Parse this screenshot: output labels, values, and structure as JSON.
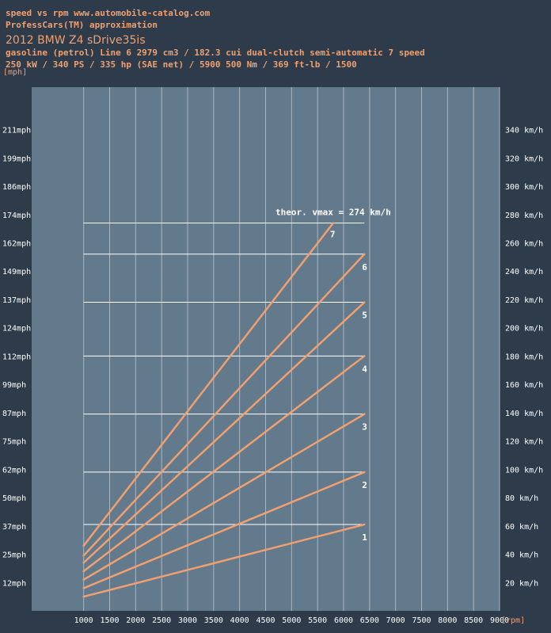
{
  "header": {
    "line1": "speed vs rpm www.automobile-catalog.com",
    "line2": "ProfessCars(TM) approximation",
    "model": "2012 BMW Z4 sDrive35is",
    "spec1": "gasoline (petrol) Line 6 2979 cm3 / 182.3 cui dual-clutch semi-automatic 7 speed",
    "spec2": "250 kW / 340 PS / 335 hp  (SAE net) / 5900 500 Nm / 369 ft-lb / 1500"
  },
  "chart_data": {
    "type": "line",
    "xlabel": "[rpm]",
    "ylabel": "[mph]",
    "x_ticks": [
      "1000",
      "1500",
      "2000",
      "2500",
      "3000",
      "3500",
      "4000",
      "4500",
      "5000",
      "5500",
      "6000",
      "6500",
      "7000",
      "7500",
      "8000",
      "8500",
      "9000"
    ],
    "y_left_ticks": [
      "12mph",
      "25mph",
      "37mph",
      "50mph",
      "62mph",
      "75mph",
      "87mph",
      "99mph",
      "112mph",
      "124mph",
      "137mph",
      "149mph",
      "162mph",
      "174mph",
      "186mph",
      "199mph",
      "211mph"
    ],
    "y_right_ticks": [
      "20 km/h",
      "40 km/h",
      "60 km/h",
      "80 km/h",
      "100 km/h",
      "120 km/h",
      "140 km/h",
      "160 km/h",
      "180 km/h",
      "200 km/h",
      "220 km/h",
      "240 km/h",
      "260 km/h",
      "280 km/h",
      "300 km/h",
      "320 km/h",
      "340 km/h"
    ],
    "xlim": [
      0,
      9000
    ],
    "ylim_kmh": [
      0,
      370
    ],
    "annotation": "theor. vmax = 274 km/h",
    "colors": {
      "plot_bg": "#637a8c",
      "line": "#f0a070",
      "grid": "#a9b7c3",
      "max_line": "#ffffff"
    },
    "series": [
      {
        "name": "1",
        "x": [
          1000,
          6400
        ],
        "y_kmh": [
          10,
          61
        ]
      },
      {
        "name": "2",
        "x": [
          1000,
          6400
        ],
        "y_kmh": [
          16,
          98
        ]
      },
      {
        "name": "3",
        "x": [
          1000,
          6400
        ],
        "y_kmh": [
          22,
          139
        ]
      },
      {
        "name": "4",
        "x": [
          1000,
          6400
        ],
        "y_kmh": [
          28,
          180
        ]
      },
      {
        "name": "5",
        "x": [
          1000,
          6400
        ],
        "y_kmh": [
          34,
          218
        ]
      },
      {
        "name": "6",
        "x": [
          1000,
          6400
        ],
        "y_kmh": [
          39,
          252
        ]
      },
      {
        "name": "7",
        "x": [
          1000,
          5800
        ],
        "y_kmh": [
          46,
          274
        ]
      }
    ]
  }
}
